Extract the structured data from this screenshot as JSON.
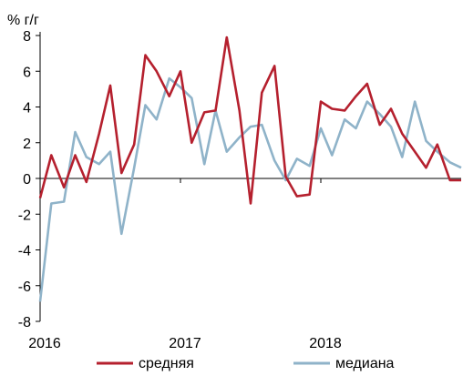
{
  "chart_data": {
    "type": "line",
    "ylabel": "% г/г",
    "ylim": [
      -8,
      8
    ],
    "yticks": [
      -8,
      -6,
      -4,
      -2,
      0,
      2,
      4,
      6,
      8
    ],
    "xlim": [
      2016.0,
      2019.0
    ],
    "xticks": [
      {
        "value": 2016.0,
        "label": "2016"
      },
      {
        "value": 2017.0,
        "label": "2017"
      },
      {
        "value": 2018.0,
        "label": "2018"
      }
    ],
    "legend_position": "bottom",
    "grid": false,
    "colors": {
      "srednyaya": "#b5202e",
      "mediana": "#8fb3c9"
    },
    "series": [
      {
        "name": "средняя",
        "color": "#b5202e",
        "x": [
          2016.0,
          2016.08,
          2016.17,
          2016.25,
          2016.33,
          2016.42,
          2016.5,
          2016.58,
          2016.67,
          2016.75,
          2016.83,
          2016.92,
          2017.0,
          2017.08,
          2017.17,
          2017.25,
          2017.33,
          2017.42,
          2017.5,
          2017.58,
          2017.67,
          2017.75,
          2017.83,
          2017.92,
          2018.0,
          2018.08,
          2018.17,
          2018.25,
          2018.33,
          2018.42,
          2018.5,
          2018.58,
          2018.67,
          2018.75,
          2018.83,
          2018.92,
          2019.0
        ],
        "values": [
          -1.1,
          1.3,
          -0.5,
          1.3,
          -0.2,
          2.5,
          5.2,
          0.3,
          1.9,
          6.9,
          6.0,
          4.6,
          6.0,
          2.0,
          3.7,
          3.8,
          7.9,
          3.8,
          -1.4,
          4.8,
          6.3,
          0.1,
          -1.0,
          -0.9,
          4.3,
          3.9,
          3.8,
          4.6,
          5.3,
          3.0,
          3.9,
          2.5,
          1.5,
          0.6,
          1.9,
          -0.1,
          -0.1
        ]
      },
      {
        "name": "медиана",
        "color": "#8fb3c9",
        "x": [
          2016.0,
          2016.08,
          2016.17,
          2016.25,
          2016.33,
          2016.42,
          2016.5,
          2016.58,
          2016.67,
          2016.75,
          2016.83,
          2016.92,
          2017.0,
          2017.08,
          2017.17,
          2017.25,
          2017.33,
          2017.42,
          2017.5,
          2017.58,
          2017.67,
          2017.75,
          2017.83,
          2017.92,
          2018.0,
          2018.08,
          2018.17,
          2018.25,
          2018.33,
          2018.42,
          2018.5,
          2018.58,
          2018.67,
          2018.75,
          2018.83,
          2018.92,
          2019.0
        ],
        "values": [
          -6.9,
          -1.4,
          -1.3,
          2.6,
          1.2,
          0.8,
          1.5,
          -3.1,
          0.6,
          4.1,
          3.3,
          5.6,
          5.1,
          4.5,
          0.8,
          3.8,
          1.5,
          2.3,
          2.9,
          3.0,
          1.0,
          -0.1,
          1.1,
          0.7,
          2.8,
          1.3,
          3.3,
          2.8,
          4.3,
          3.6,
          2.9,
          1.2,
          4.3,
          2.1,
          1.5,
          0.9,
          0.6
        ]
      }
    ]
  }
}
